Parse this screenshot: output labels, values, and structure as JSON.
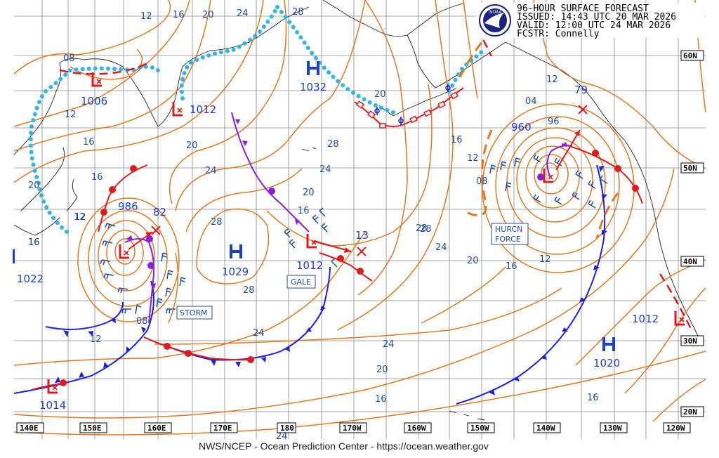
{
  "header": {
    "title": "96-HOUR SURFACE FORECAST",
    "issued": "ISSUED: 14:43 UTC 20 MAR 2026",
    "valid": "VALID:  12:00 UTC 24 MAR 2026",
    "forecaster": "FCSTR:  Connelly",
    "logo_text": "NOAA"
  },
  "footer": "NWS/NCEP - Ocean Prediction Center - https://ocean.weather.gov",
  "latitude_labels": [
    "60N",
    "50N",
    "40N",
    "30N",
    "20N"
  ],
  "longitude_labels": [
    "140E",
    "150E",
    "160E",
    "170E",
    "180",
    "170W",
    "160W",
    "150W",
    "140W",
    "130W",
    "120W"
  ],
  "pressure_systems": [
    {
      "type": "L",
      "pressure": "1006"
    },
    {
      "type": "L",
      "pressure": "1012"
    },
    {
      "type": "H",
      "pressure": "1032"
    },
    {
      "type": "L",
      "pressure": "986",
      "forecast": "82"
    },
    {
      "type": "H",
      "pressure": "1029",
      "sub": "28"
    },
    {
      "type": "L",
      "pressure": "1012",
      "forecast": "13"
    },
    {
      "type": "H",
      "pressure": "1022"
    },
    {
      "type": "L",
      "pressure": "1014"
    },
    {
      "type": "L",
      "pressure": "960",
      "forecast": "79"
    },
    {
      "type": "L",
      "pressure": "1012"
    },
    {
      "type": "H",
      "pressure": "1020"
    }
  ],
  "isobar_labels": [
    "12",
    "16",
    "20",
    "24",
    "28",
    "08",
    "12",
    "16",
    "20",
    "24",
    "16",
    "24",
    "28",
    "20",
    "16",
    "28",
    "24",
    "20",
    "24",
    "28",
    "20",
    "16",
    "12",
    "08",
    "12",
    "16",
    "20",
    "24",
    "16",
    "04",
    "96",
    "12",
    "08",
    "12",
    "16",
    "12",
    "16",
    "20",
    "24",
    "28",
    "16",
    "12"
  ],
  "warnings": {
    "storm": "STORM",
    "gale": "GALE",
    "hurricane_force_line1": "HURCN",
    "hurricane_force_line2": "FORCE"
  },
  "colors": {
    "isobar": "#e3781f",
    "ice_edge": "#35b4e6",
    "cold_front": "#1a22d8",
    "warm_front": "#e01b1b",
    "occluded": "#8a1ee0",
    "label": "#1f4e9c",
    "high_low": "#1f3fc8"
  }
}
